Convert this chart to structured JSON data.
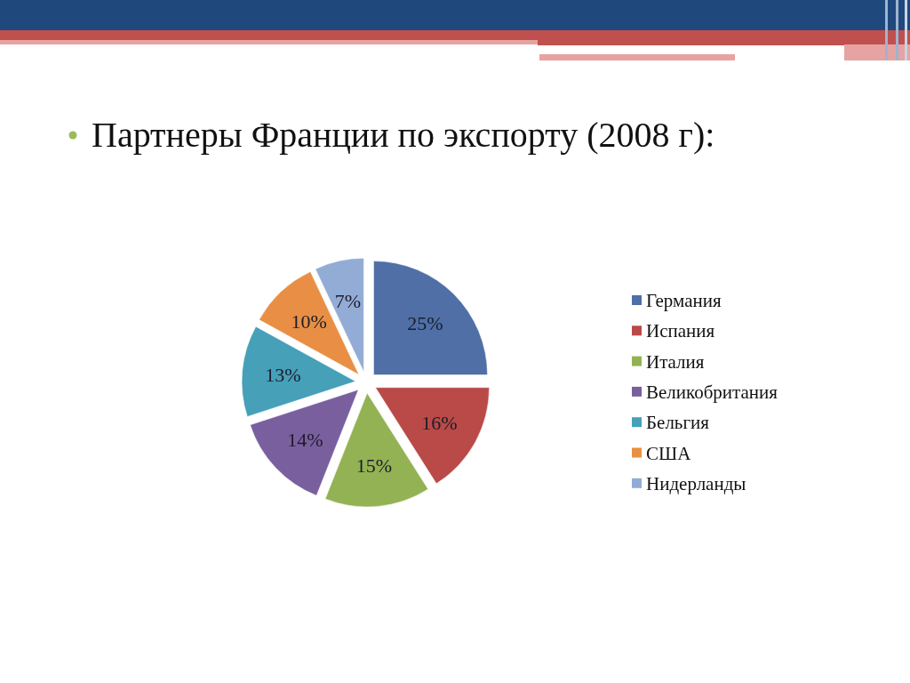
{
  "chart_data": {
    "type": "pie",
    "title": "Партнеры Франции по экспорту (2008 г):",
    "categories": [
      "Германия",
      "Испания",
      "Италия",
      "Великобритания",
      "Бельгия",
      "США",
      "Нидерланды"
    ],
    "values": [
      25,
      16,
      15,
      14,
      13,
      10,
      7
    ],
    "colors": [
      "#4f6fa6",
      "#b94a47",
      "#93b254",
      "#7a5f9e",
      "#45a0b8",
      "#e88f45",
      "#93acd6"
    ],
    "value_labels": [
      "25%",
      "16%",
      "15%",
      "14%",
      "13%",
      "10%",
      "7%"
    ],
    "legend": "right"
  }
}
